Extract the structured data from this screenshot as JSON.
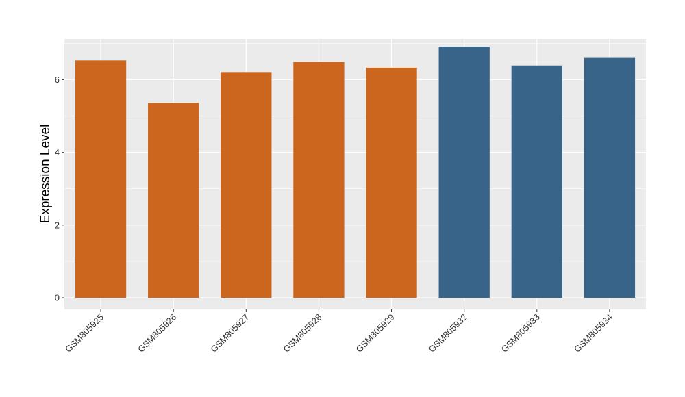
{
  "chart_data": {
    "type": "bar",
    "title": "",
    "xlabel": "",
    "ylabel": "Expression Level",
    "categories": [
      "GSM805925",
      "GSM805926",
      "GSM805927",
      "GSM805928",
      "GSM805929",
      "GSM805932",
      "GSM805933",
      "GSM805934"
    ],
    "values": [
      6.53,
      5.36,
      6.21,
      6.49,
      6.33,
      6.91,
      6.39,
      6.6
    ],
    "bar_colors": [
      "#CC661E",
      "#CC661E",
      "#CC661E",
      "#CC661E",
      "#CC661E",
      "#386489",
      "#386489",
      "#386489"
    ],
    "ylim": [
      -0.32,
      7.12
    ],
    "yticks": [
      0,
      2,
      4,
      6
    ],
    "ytick_labels": [
      "0",
      "2",
      "4",
      "6"
    ],
    "grid": true,
    "panel_background": "#EBEBEB",
    "gridline_color": "#FFFFFF"
  }
}
